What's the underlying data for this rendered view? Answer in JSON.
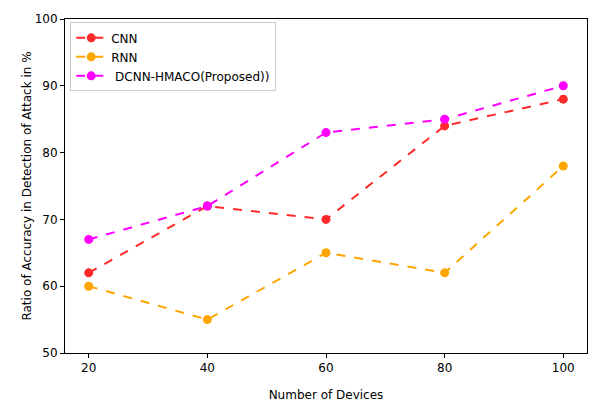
{
  "chart_data": {
    "type": "line",
    "x_label": "Number of Devices",
    "y_label": "Ratio of Accuracy in Detection of Attack in %",
    "x": [
      20,
      40,
      60,
      80,
      100
    ],
    "series": [
      {
        "name": "CNN",
        "color": "#ff2a2a",
        "values": [
          62,
          72,
          70,
          84,
          88
        ],
        "line_style": "dashed",
        "marker": "circle"
      },
      {
        "name": "RNN",
        "color": "#ffa500",
        "values": [
          60,
          55,
          65,
          62,
          78
        ],
        "line_style": "dashed",
        "marker": "circle"
      },
      {
        "name": " DCNN-HMACO(Proposed))",
        "color": "#ff00ff",
        "values": [
          67,
          72,
          83,
          85,
          90
        ],
        "line_style": "dashed",
        "marker": "circle"
      }
    ],
    "xlim": [
      16,
      104
    ],
    "xticks": [
      20,
      40,
      60,
      80,
      100
    ],
    "ylim": [
      50,
      100
    ],
    "yticks": [
      50,
      60,
      70,
      80,
      90,
      100
    ],
    "grid": false,
    "legend": "upper left"
  }
}
